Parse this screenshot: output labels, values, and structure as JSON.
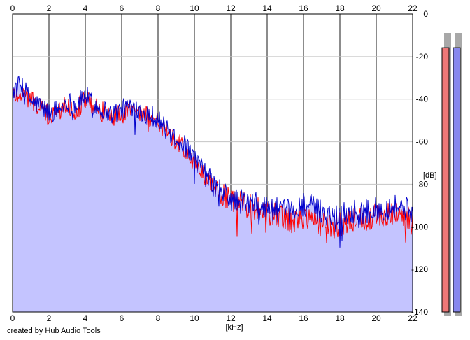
{
  "chart_data": {
    "type": "line",
    "x_ticks": [
      0,
      2,
      4,
      6,
      8,
      10,
      12,
      14,
      16,
      18,
      20,
      22
    ],
    "y_ticks": [
      0,
      -20,
      -40,
      -60,
      -80,
      -100,
      -120,
      -140
    ],
    "xlim": [
      0,
      22
    ],
    "ylim": [
      -140,
      0
    ],
    "xlabel": "[kHz]",
    "ylabel": "[dB]",
    "grid": true,
    "series": [
      {
        "color": "#ff0000",
        "x": [
          0,
          0.5,
          1,
          1.5,
          2,
          2.5,
          3,
          3.5,
          4,
          4.5,
          5,
          5.5,
          6,
          6.5,
          7,
          7.5,
          8,
          8.5,
          9,
          9.5,
          10,
          10.5,
          11,
          11.5,
          12,
          12.5,
          13,
          13.5,
          14,
          14.5,
          15,
          15.5,
          16,
          16.5,
          17,
          17.5,
          18,
          18.5,
          19,
          19.5,
          20,
          20.5,
          21,
          21.5,
          22
        ],
        "values": [
          -38,
          -37,
          -40,
          -44,
          -48,
          -46,
          -42,
          -45,
          -40,
          -44,
          -46,
          -48,
          -47,
          -44,
          -46,
          -48,
          -50,
          -56,
          -60,
          -64,
          -70,
          -76,
          -82,
          -85,
          -88,
          -89,
          -90,
          -92,
          -93,
          -95,
          -96,
          -98,
          -95,
          -96,
          -99,
          -100,
          -99,
          -97,
          -96,
          -97,
          -95,
          -94,
          -93,
          -95,
          -96
        ]
      },
      {
        "color": "#0000cc",
        "x": [
          0,
          0.5,
          1,
          1.5,
          2,
          2.5,
          3,
          3.5,
          4,
          4.5,
          5,
          5.5,
          6,
          6.5,
          7,
          7.5,
          8,
          8.5,
          9,
          9.5,
          10,
          10.5,
          11,
          11.5,
          12,
          12.5,
          13,
          13.5,
          14,
          14.5,
          15,
          15.5,
          16,
          16.5,
          17,
          17.5,
          18,
          18.5,
          19,
          19.5,
          20,
          20.5,
          21,
          21.5,
          22
        ],
        "values": [
          -36,
          -33,
          -41,
          -43,
          -46,
          -45,
          -41,
          -43,
          -38,
          -43,
          -45,
          -47,
          -45,
          -43,
          -45,
          -47,
          -49,
          -55,
          -58,
          -62,
          -68,
          -74,
          -80,
          -84,
          -87,
          -88,
          -89,
          -90,
          -91,
          -92,
          -93,
          -93,
          -89,
          -91,
          -93,
          -94,
          -94,
          -93,
          -93,
          -93,
          -92,
          -91,
          -90,
          -91,
          -93
        ]
      }
    ]
  },
  "meters": [
    {
      "fill": 0.94,
      "color": "#ee7777"
    },
    {
      "fill": 0.94,
      "color": "#8888ee"
    }
  ],
  "credit": "created by Hub Audio Tools"
}
